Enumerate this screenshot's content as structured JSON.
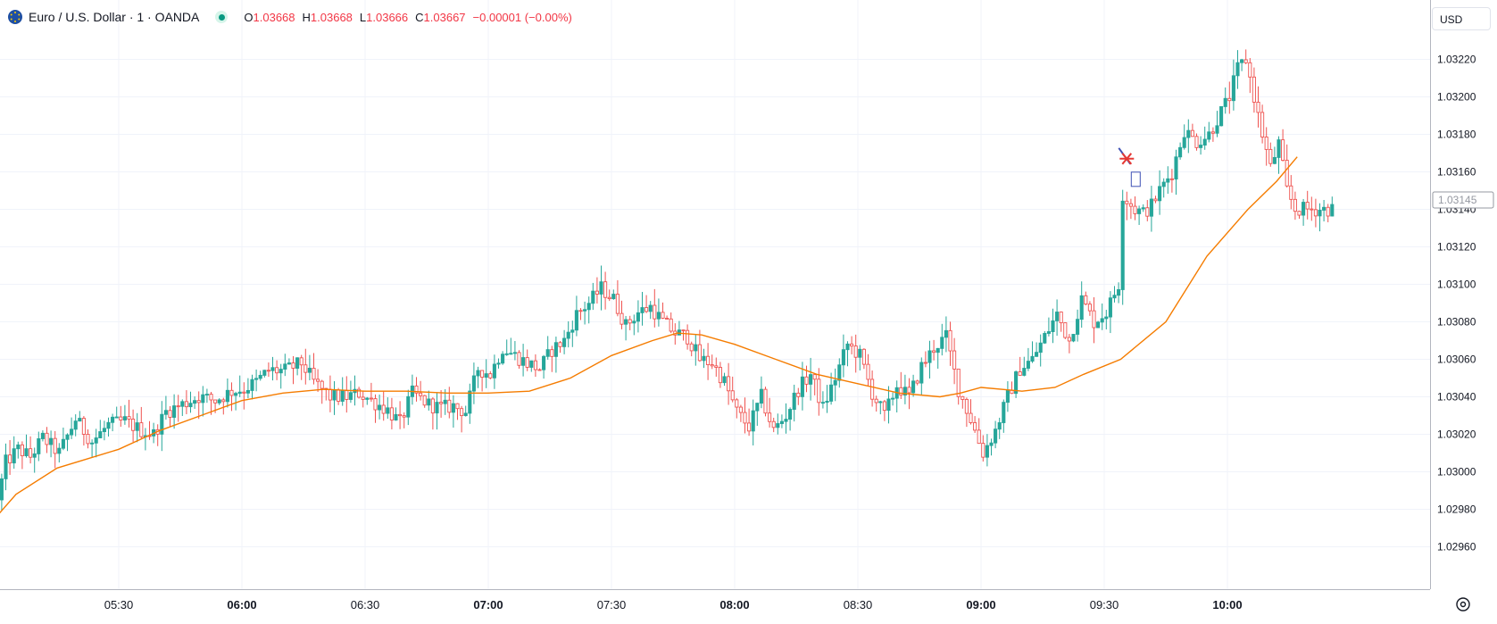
{
  "legend": {
    "symbol": "Euro / U.S. Dollar",
    "interval": "1",
    "exchange": "OANDA",
    "symbol_line": "Euro / U.S. Dollar · 1 · OANDA",
    "o_label": "O",
    "o_value": "1.03668",
    "h_label": "H",
    "h_value": "1.03668",
    "l_label": "L",
    "l_value": "1.03666",
    "c_label": "C",
    "c_value": "1.03667",
    "change": "−0.00001 (−0.00%)"
  },
  "price_axis": {
    "currency": "USD",
    "current_price_label": "1.03145"
  },
  "colors": {
    "up": "#26a69a",
    "down": "#ef5350",
    "ma_line": "#f57c00",
    "grid": "#f0f3fa",
    "marker_red": "#e53935",
    "marker_blue": "#3f51b5"
  },
  "icons": {
    "symbol": "euro-flag-icon",
    "status": "market-status-icon",
    "settings": "settings-icon",
    "marker": "cross-marker-icon"
  },
  "chart_data": {
    "type": "candlestick",
    "title": "Euro / U.S. Dollar · 1 · OANDA",
    "xlabel": "",
    "ylabel": "",
    "ylim": [
      1.0296,
      1.0323
    ],
    "grid": true,
    "y_ticks": [
      "1.02960",
      "1.02980",
      "1.03000",
      "1.03020",
      "1.03040",
      "1.03060",
      "1.03080",
      "1.03100",
      "1.03120",
      "1.03140",
      "1.03160",
      "1.03180",
      "1.03200",
      "1.03220"
    ],
    "x_ticks": [
      {
        "label": "05:30",
        "minute": 330,
        "bold": false
      },
      {
        "label": "06:00",
        "minute": 360,
        "bold": true
      },
      {
        "label": "06:30",
        "minute": 390,
        "bold": false
      },
      {
        "label": "07:00",
        "minute": 420,
        "bold": true
      },
      {
        "label": "07:30",
        "minute": 450,
        "bold": false
      },
      {
        "label": "08:00",
        "minute": 480,
        "bold": true
      },
      {
        "label": "08:30",
        "minute": 510,
        "bold": false
      },
      {
        "label": "09:00",
        "minute": 540,
        "bold": true
      },
      {
        "label": "09:30",
        "minute": 570,
        "bold": false
      },
      {
        "label": "10:00",
        "minute": 600,
        "bold": true
      }
    ],
    "x_range_minutes": [
      301,
      626
    ],
    "price_path": [
      [
        301,
        1.02985
      ],
      [
        303,
        1.03005
      ],
      [
        306,
        1.03012
      ],
      [
        309,
        1.03008
      ],
      [
        312,
        1.03018
      ],
      [
        316,
        1.0301
      ],
      [
        320,
        1.03028
      ],
      [
        324,
        1.03016
      ],
      [
        328,
        1.03025
      ],
      [
        332,
        1.03027
      ],
      [
        336,
        1.03022
      ],
      [
        339,
        1.0302
      ],
      [
        342,
        1.03032
      ],
      [
        346,
        1.03036
      ],
      [
        350,
        1.0304
      ],
      [
        354,
        1.03038
      ],
      [
        358,
        1.03043
      ],
      [
        361,
        1.03044
      ],
      [
        364,
        1.03048
      ],
      [
        367,
        1.03054
      ],
      [
        371,
        1.03054
      ],
      [
        375,
        1.03058
      ],
      [
        378,
        1.03048
      ],
      [
        382,
        1.0304
      ],
      [
        386,
        1.0304
      ],
      [
        389,
        1.03042
      ],
      [
        392,
        1.03038
      ],
      [
        396,
        1.03033
      ],
      [
        399,
        1.03026
      ],
      [
        402,
        1.03042
      ],
      [
        406,
        1.03036
      ],
      [
        409,
        1.03034
      ],
      [
        412,
        1.03035
      ],
      [
        415,
        1.03032
      ],
      [
        418,
        1.03055
      ],
      [
        421,
        1.03052
      ],
      [
        424,
        1.03066
      ],
      [
        427,
        1.03062
      ],
      [
        430,
        1.03058
      ],
      [
        433,
        1.03055
      ],
      [
        436,
        1.03065
      ],
      [
        439,
        1.0307
      ],
      [
        442,
        1.03084
      ],
      [
        445,
        1.0309
      ],
      [
        448,
        1.03098
      ],
      [
        451,
        1.03092
      ],
      [
        454,
        1.03078
      ],
      [
        457,
        1.03085
      ],
      [
        460,
        1.03088
      ],
      [
        463,
        1.0308
      ],
      [
        466,
        1.03074
      ],
      [
        469,
        1.03072
      ],
      [
        472,
        1.0306
      ],
      [
        475,
        1.03058
      ],
      [
        478,
        1.03048
      ],
      [
        481,
        1.03032
      ],
      [
        484,
        1.03024
      ],
      [
        487,
        1.0304
      ],
      [
        490,
        1.03022
      ],
      [
        493,
        1.0303
      ],
      [
        496,
        1.03044
      ],
      [
        499,
        1.03052
      ],
      [
        502,
        1.03034
      ],
      [
        505,
        1.0305
      ],
      [
        508,
        1.03068
      ],
      [
        511,
        1.03062
      ],
      [
        514,
        1.03042
      ],
      [
        517,
        1.0303
      ],
      [
        520,
        1.03046
      ],
      [
        523,
        1.0304
      ],
      [
        526,
        1.03056
      ],
      [
        529,
        1.03066
      ],
      [
        532,
        1.03072
      ],
      [
        535,
        1.03044
      ],
      [
        538,
        1.03028
      ],
      [
        541,
        1.0301
      ],
      [
        544,
        1.03022
      ],
      [
        547,
        1.0304
      ],
      [
        550,
        1.03055
      ],
      [
        553,
        1.0306
      ],
      [
        556,
        1.03072
      ],
      [
        559,
        1.03084
      ],
      [
        562,
        1.0307
      ],
      [
        565,
        1.03092
      ],
      [
        568,
        1.0308
      ],
      [
        571,
        1.03085
      ],
      [
        574,
        1.031
      ],
      [
        575,
        1.03148
      ],
      [
        576,
        1.03145
      ],
      [
        578,
        1.0314
      ],
      [
        580,
        1.03138
      ],
      [
        582,
        1.03142
      ],
      [
        584,
        1.0315
      ],
      [
        587,
        1.0316
      ],
      [
        590,
        1.03182
      ],
      [
        593,
        1.03176
      ],
      [
        596,
        1.0318
      ],
      [
        599,
        1.03192
      ],
      [
        601,
        1.032
      ],
      [
        603,
        1.03215
      ],
      [
        605,
        1.0322
      ],
      [
        607,
        1.032
      ],
      [
        609,
        1.0318
      ],
      [
        611,
        1.03162
      ],
      [
        613,
        1.03175
      ],
      [
        615,
        1.0315
      ],
      [
        617,
        1.0314
      ]
    ],
    "series": [
      {
        "name": "",
        "type": "moving-average",
        "points": [
          [
            301,
            1.02978
          ],
          [
            305,
            1.02988
          ],
          [
            315,
            1.03002
          ],
          [
            330,
            1.03012
          ],
          [
            340,
            1.03022
          ],
          [
            350,
            1.0303
          ],
          [
            360,
            1.03038
          ],
          [
            370,
            1.03042
          ],
          [
            380,
            1.03044
          ],
          [
            390,
            1.03043
          ],
          [
            400,
            1.03043
          ],
          [
            410,
            1.03042
          ],
          [
            420,
            1.03042
          ],
          [
            430,
            1.03043
          ],
          [
            440,
            1.0305
          ],
          [
            450,
            1.03062
          ],
          [
            460,
            1.0307
          ],
          [
            466,
            1.03074
          ],
          [
            472,
            1.03073
          ],
          [
            480,
            1.03068
          ],
          [
            490,
            1.0306
          ],
          [
            500,
            1.03052
          ],
          [
            510,
            1.03047
          ],
          [
            520,
            1.03042
          ],
          [
            530,
            1.0304
          ],
          [
            535,
            1.03042
          ],
          [
            540,
            1.03045
          ],
          [
            550,
            1.03043
          ],
          [
            558,
            1.03045
          ],
          [
            565,
            1.03052
          ],
          [
            574,
            1.0306
          ],
          [
            585,
            1.0308
          ],
          [
            595,
            1.03115
          ],
          [
            605,
            1.0314
          ],
          [
            612,
            1.03155
          ],
          [
            617,
            1.03168
          ]
        ]
      }
    ],
    "annotations": [
      {
        "type": "marker",
        "minute": 575.5,
        "price": 1.03167
      }
    ]
  }
}
